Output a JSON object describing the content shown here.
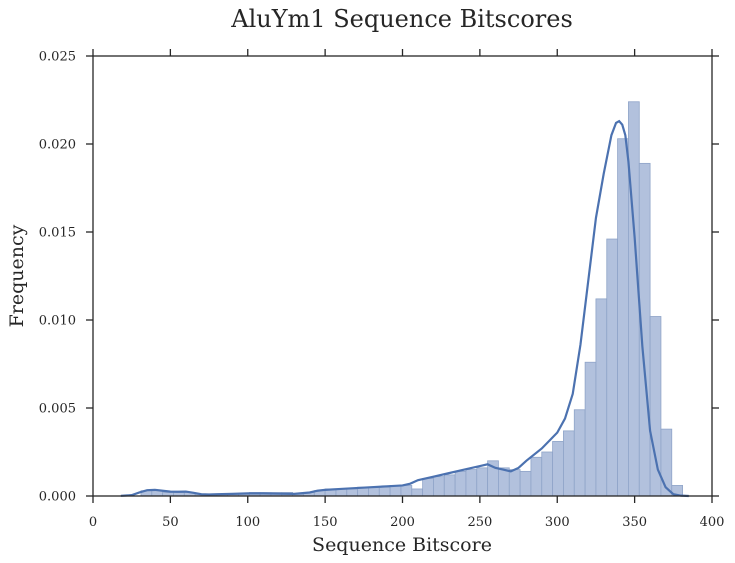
{
  "chart_data": {
    "type": "bar",
    "title": "AluYm1 Sequence Bitscores",
    "xlabel": "Sequence Bitscore",
    "ylabel": "Frequency",
    "xlim": [
      0,
      400
    ],
    "ylim": [
      0,
      0.025
    ],
    "xticks": [
      0,
      50,
      100,
      150,
      200,
      250,
      300,
      350,
      400
    ],
    "xtick_labels": [
      "0",
      "50",
      "100",
      "150",
      "200",
      "250",
      "300",
      "350",
      "400"
    ],
    "yticks": [
      0,
      0.005,
      0.01,
      0.015,
      0.02,
      0.025
    ],
    "ytick_labels": [
      "0.000",
      "0.005",
      "0.010",
      "0.015",
      "0.020",
      "0.025"
    ],
    "grid": false,
    "histogram": {
      "bin_edges": [
        31,
        38,
        45,
        52,
        59,
        66,
        73,
        80,
        87,
        94,
        101,
        108,
        115,
        122,
        129,
        136,
        143,
        150,
        157,
        164,
        171,
        178,
        185,
        192,
        199,
        206,
        213,
        220,
        227,
        234,
        241,
        248,
        255,
        262,
        269,
        276,
        283,
        290,
        297,
        304,
        311,
        318,
        325,
        332,
        339,
        346,
        353,
        360,
        367,
        374
      ],
      "frequencies": [
        0.0003,
        0.0003,
        0.0002,
        0.0002,
        0.0002,
        0.0001,
        0.0001,
        0.0001,
        0.0001,
        0.0001,
        0.0002,
        0.0002,
        0.0002,
        0.0002,
        0.0001,
        0.0002,
        0.0003,
        0.0004,
        0.0004,
        0.0004,
        0.0005,
        0.0005,
        0.0005,
        0.0006,
        0.0006,
        0.0004,
        0.001,
        0.0011,
        0.0012,
        0.0014,
        0.0015,
        0.0016,
        0.002,
        0.0016,
        0.0015,
        0.0014,
        0.0022,
        0.0025,
        0.0031,
        0.0037,
        0.0049,
        0.0076,
        0.0112,
        0.0146,
        0.0203,
        0.0224,
        0.0189,
        0.0102,
        0.0038,
        0.0006
      ]
    },
    "kde": {
      "x": [
        18,
        25,
        30,
        35,
        40,
        45,
        50,
        55,
        60,
        65,
        70,
        75,
        80,
        90,
        100,
        110,
        120,
        130,
        140,
        145,
        150,
        160,
        170,
        180,
        190,
        200,
        205,
        210,
        220,
        230,
        240,
        250,
        255,
        260,
        265,
        270,
        275,
        280,
        290,
        300,
        305,
        310,
        315,
        320,
        325,
        330,
        335,
        338,
        340,
        342,
        344,
        346,
        350,
        355,
        360,
        365,
        370,
        375,
        380,
        385
      ],
      "y": [
        1e-05,
        5e-05,
        0.0002,
        0.00033,
        0.00035,
        0.0003,
        0.00025,
        0.00024,
        0.00025,
        0.00018,
        0.0001,
        9e-05,
        0.0001,
        0.00012,
        0.00015,
        0.00015,
        0.00013,
        0.00012,
        0.0002,
        0.0003,
        0.00035,
        0.0004,
        0.00045,
        0.0005,
        0.00055,
        0.0006,
        0.0007,
        0.0009,
        0.0011,
        0.0013,
        0.0015,
        0.0017,
        0.0018,
        0.0016,
        0.0015,
        0.0014,
        0.0016,
        0.002,
        0.0027,
        0.0036,
        0.0044,
        0.0058,
        0.0086,
        0.0122,
        0.0158,
        0.0183,
        0.0205,
        0.0212,
        0.0213,
        0.0211,
        0.0205,
        0.019,
        0.0147,
        0.0085,
        0.0037,
        0.0015,
        0.0005,
        0.0001,
        2e-05,
        0
      ]
    },
    "colors": {
      "bar_fill": "#b2c1dd",
      "bar_edge": "#8fa4c8",
      "kde_line": "#4c72b0",
      "axes": "#262626"
    }
  }
}
